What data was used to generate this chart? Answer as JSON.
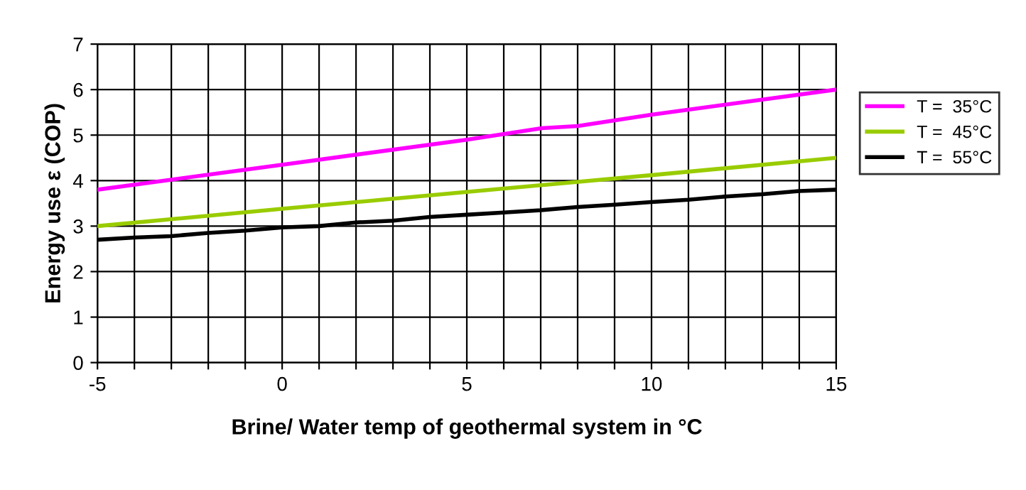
{
  "chart_data": {
    "type": "line",
    "xlabel": "Brine/ Water temp of geothermal system in °C",
    "ylabel": "Energy use ε (COP)",
    "xlim": [
      -5,
      15
    ],
    "ylim": [
      0,
      7
    ],
    "xticks": [
      -5,
      {
        "value": -4,
        "label": null
      },
      {
        "value": -3,
        "label": null
      },
      {
        "value": -2,
        "label": null
      },
      {
        "value": -1,
        "label": null
      },
      0,
      {
        "value": 1,
        "label": null
      },
      {
        "value": 2,
        "label": null
      },
      {
        "value": 3,
        "label": null
      },
      {
        "value": 4,
        "label": null
      },
      5,
      {
        "value": 6,
        "label": null
      },
      {
        "value": 7,
        "label": null
      },
      {
        "value": 8,
        "label": null
      },
      {
        "value": 9,
        "label": null
      },
      10,
      {
        "value": 11,
        "label": null
      },
      {
        "value": 12,
        "label": null
      },
      {
        "value": 13,
        "label": null
      },
      {
        "value": 14,
        "label": null
      },
      15
    ],
    "yticks": [
      0,
      1,
      2,
      3,
      4,
      5,
      6,
      7
    ],
    "grid": true,
    "legend": "right",
    "line_style": "solid",
    "marker": "none",
    "series": [
      {
        "name": "T =  35°C",
        "color": "#ff00ff",
        "x": [
          -5,
          0,
          5,
          7,
          8,
          10,
          15
        ],
        "values": [
          3.8,
          4.35,
          4.9,
          5.15,
          5.2,
          5.45,
          6.0
        ]
      },
      {
        "name": "T =  45°C",
        "color": "#99cc00",
        "x": [
          -5,
          0,
          5,
          10,
          15
        ],
        "values": [
          3.0,
          3.38,
          3.75,
          4.12,
          4.5
        ]
      },
      {
        "name": "T =  55°C",
        "color": "#000000",
        "x": [
          -5,
          -4,
          -3,
          -2,
          -1,
          0,
          1,
          2,
          3,
          4,
          5,
          6,
          7,
          8,
          9,
          10,
          11,
          12,
          13,
          14,
          15
        ],
        "values": [
          2.7,
          2.75,
          2.78,
          2.85,
          2.9,
          2.97,
          3.0,
          3.08,
          3.12,
          3.2,
          3.25,
          3.3,
          3.35,
          3.42,
          3.47,
          3.53,
          3.58,
          3.65,
          3.7,
          3.77,
          3.8
        ]
      }
    ]
  }
}
